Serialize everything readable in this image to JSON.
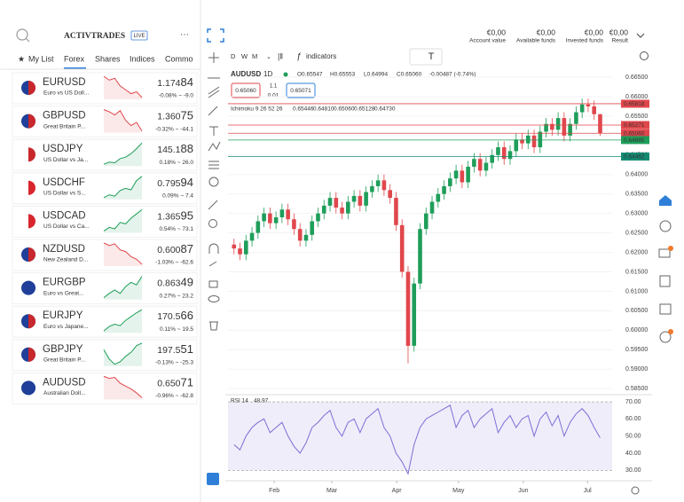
{
  "header": {
    "logo": "ACTIVTRADES",
    "badge": "LIVE",
    "account": [
      {
        "value": "€0,00",
        "label": "Account value"
      },
      {
        "value": "€0,00",
        "label": "Available funds"
      },
      {
        "value": "€0,00",
        "label": "Invested funds"
      },
      {
        "value": "€0,00",
        "label": "Result"
      }
    ]
  },
  "watchlist": {
    "tabs": [
      "My List",
      "Forex",
      "Shares",
      "Indices",
      "Commo"
    ],
    "active_tab": 1,
    "items": [
      {
        "symbol": "EURUSD",
        "desc": "Euro vs US Doll...",
        "price": "1.17484",
        "price_color": "#1e9e5a",
        "change": "-0.08% ~ -9.0",
        "change_color": "#e0474c",
        "spark": [
          9,
          8.6,
          8.8,
          8,
          7.6,
          7.2,
          7.4,
          6.8
        ],
        "spark_color": "#e0474c"
      },
      {
        "symbol": "GBPUSD",
        "desc": "Great Britain P...",
        "price": "1.36075",
        "price_color": "#1e9e5a",
        "change": "-0.32% ~ -44.1",
        "change_color": "#e0474c",
        "spark": [
          9,
          8.8,
          8.5,
          8.9,
          8,
          7.5,
          7.8,
          7
        ],
        "spark_color": "#e0474c"
      },
      {
        "symbol": "USDJPY",
        "desc": "US Dollar vs Ja...",
        "price": "145.188",
        "price_color": "#e0474c",
        "change": "0.18% ~ 26.0",
        "change_color": "#1e9e5a",
        "spark": [
          6,
          6.3,
          6.2,
          6.8,
          7,
          7.5,
          8.2,
          9
        ],
        "spark_color": "#1e9e5a"
      },
      {
        "symbol": "USDCHF",
        "desc": "US Dollar vs S...",
        "price": "0.79594",
        "price_color": "#e0474c",
        "change": "0.09% ~ 7.4",
        "change_color": "#1e9e5a",
        "spark": [
          6,
          6.4,
          6.2,
          7,
          7.3,
          7.1,
          8.4,
          9
        ],
        "spark_color": "#1e9e5a"
      },
      {
        "symbol": "USDCAD",
        "desc": "US Dollar vs Ca...",
        "price": "1.36595",
        "price_color": "#1e9e5a",
        "change": "0.54% ~ 73.1",
        "change_color": "#1e9e5a",
        "spark": [
          6,
          6.5,
          6.3,
          7.2,
          7,
          7.8,
          8.4,
          9
        ],
        "spark_color": "#1e9e5a"
      },
      {
        "symbol": "NZDUSD",
        "desc": "New Zealand D...",
        "price": "0.60087",
        "price_color": "#e0474c",
        "change": "-1.03% ~ -62.6",
        "change_color": "#e0474c",
        "spark": [
          9,
          8.7,
          8.9,
          8.2,
          8,
          7.4,
          7.1,
          6.5
        ],
        "spark_color": "#e0474c"
      },
      {
        "symbol": "EURGBP",
        "desc": "Euro vs Great...",
        "price": "0.86349",
        "price_color": "#e0474c",
        "change": "0.27% ~ 23.2",
        "change_color": "#1e9e5a",
        "spark": [
          6.5,
          7,
          7.4,
          7,
          7.8,
          8.3,
          8,
          9
        ],
        "spark_color": "#1e9e5a"
      },
      {
        "symbol": "EURJPY",
        "desc": "Euro vs Japane...",
        "price": "170.566",
        "price_color": "#e0474c",
        "change": "0.11% ~ 19.5",
        "change_color": "#1e9e5a",
        "spark": [
          6.2,
          6.8,
          7.1,
          6.9,
          7.6,
          8.1,
          8.6,
          9
        ],
        "spark_color": "#1e9e5a"
      },
      {
        "symbol": "GBPJPY",
        "desc": "Great Britain P...",
        "price": "197.551",
        "price_color": "#e0474c",
        "change": "-0.13% ~ -25.3",
        "change_color": "#e0474c",
        "spark": [
          8.5,
          7.8,
          7.4,
          7.6,
          8,
          8.3,
          8.8,
          9
        ],
        "spark_color": "#1e9e5a"
      },
      {
        "symbol": "AUDUSD",
        "desc": "Australian Doll...",
        "price": "0.65071",
        "price_color": "#1e9e5a",
        "change": "-0.96% ~ -62.8",
        "change_color": "#e0474c",
        "spark": [
          9,
          8.8,
          8.9,
          8.3,
          8,
          7.7,
          7.3,
          6.8
        ],
        "spark_color": "#e0474c"
      }
    ]
  },
  "chart": {
    "type": "candlestick",
    "timeframes": [
      "D",
      "W",
      "M"
    ],
    "indicators_button": "indicators",
    "symbol": "AUDUSD",
    "interval": "1D",
    "legend": [
      "O0.65547",
      "H0.65553",
      "L0.64994",
      "C0.65060",
      "-0.00487 (-0.74%)"
    ],
    "sell": "0.65060",
    "spread": "1.1",
    "lot": "0.01",
    "buy": "0.65071",
    "ichimoku": {
      "label": "Ichimoku 9 26 52 26",
      "values": [
        {
          "text": "0.65446",
          "color": "#2f7fd8"
        },
        {
          "text": "0.64810",
          "color": "#c8272c"
        },
        {
          "text": "0.65060",
          "color": "#3d9a3d"
        },
        {
          "text": "0.65128",
          "color": "#8fc98f"
        },
        {
          "text": "0.64730",
          "color": "#e89090"
        }
      ]
    },
    "up_color": "#1e9e5a",
    "down_color": "#e0474c",
    "xlim": [
      -1,
      63
    ],
    "xticks": [
      {
        "value": 6.7,
        "label": "Feb"
      },
      {
        "value": 16.3,
        "label": "Mar"
      },
      {
        "value": 27.1,
        "label": "Apr"
      },
      {
        "value": 37.4,
        "label": "May"
      },
      {
        "value": 48.2,
        "label": "Jun"
      },
      {
        "value": 58.9,
        "label": "Jul"
      }
    ],
    "ylim": [
      0.5839,
      0.6666
    ],
    "yticks": [
      {
        "value": 0.585,
        "label": "0.58500"
      },
      {
        "value": 0.59,
        "label": "0.59000"
      },
      {
        "value": 0.595,
        "label": "0.59500"
      },
      {
        "value": 0.6,
        "label": "0.60000"
      },
      {
        "value": 0.605,
        "label": "0.60500"
      },
      {
        "value": 0.61,
        "label": "0.61000"
      },
      {
        "value": 0.615,
        "label": "0.61500"
      },
      {
        "value": 0.62,
        "label": "0.62000"
      },
      {
        "value": 0.625,
        "label": "0.62500"
      },
      {
        "value": 0.63,
        "label": "0.63000"
      },
      {
        "value": 0.635,
        "label": "0.63500"
      },
      {
        "value": 0.64,
        "label": "0.64000"
      },
      {
        "value": 0.645,
        "label": "0.64500"
      },
      {
        "value": 0.65,
        "label": "0.65000"
      },
      {
        "value": 0.655,
        "label": "0.65500"
      },
      {
        "value": 0.66,
        "label": "0.66000"
      },
      {
        "value": 0.665,
        "label": "0.66500"
      }
    ],
    "price_lines": [
      {
        "value": 0.65818,
        "label": "0.65818",
        "color": "#e0474c"
      },
      {
        "value": 0.65271,
        "label": "0.65271",
        "color": "#e0474c"
      },
      {
        "value": 0.6506,
        "label": "0.65060",
        "color": "#e0474c"
      },
      {
        "value": 0.64885,
        "label": "0.64885",
        "color": "#1e9e5a"
      },
      {
        "value": 0.64462,
        "label": "0.64462",
        "color": "#138a72"
      }
    ],
    "open": [
      0.622,
      0.621,
      0.6195,
      0.623,
      0.625,
      0.628,
      0.63,
      0.6275,
      0.629,
      0.631,
      0.6285,
      0.626,
      0.623,
      0.6245,
      0.628,
      0.63,
      0.632,
      0.634,
      0.6315,
      0.63,
      0.633,
      0.6345,
      0.632,
      0.6355,
      0.637,
      0.6385,
      0.636,
      0.634,
      0.627,
      0.615,
      0.596,
      0.612,
      0.626,
      0.63,
      0.633,
      0.635,
      0.637,
      0.639,
      0.641,
      0.638,
      0.642,
      0.644,
      0.641,
      0.643,
      0.645,
      0.647,
      0.644,
      0.646,
      0.649,
      0.648,
      0.65,
      0.647,
      0.651,
      0.653,
      0.6515,
      0.6545,
      0.65,
      0.653,
      0.656,
      0.658,
      0.6575,
      0.6555
    ],
    "high": [
      0.6235,
      0.6225,
      0.6245,
      0.6265,
      0.6295,
      0.6315,
      0.6315,
      0.6305,
      0.6325,
      0.6325,
      0.63,
      0.6275,
      0.626,
      0.6295,
      0.6315,
      0.6335,
      0.6355,
      0.6355,
      0.633,
      0.6345,
      0.636,
      0.636,
      0.637,
      0.6385,
      0.64,
      0.64,
      0.6375,
      0.6355,
      0.6285,
      0.6165,
      0.6135,
      0.6275,
      0.6315,
      0.6345,
      0.6365,
      0.6385,
      0.6405,
      0.6425,
      0.6425,
      0.6435,
      0.6455,
      0.6455,
      0.6445,
      0.6465,
      0.6485,
      0.6485,
      0.6475,
      0.6505,
      0.6505,
      0.6515,
      0.6515,
      0.6525,
      0.6545,
      0.6545,
      0.656,
      0.656,
      0.6545,
      0.6575,
      0.6595,
      0.6595,
      0.659,
      0.6555
    ],
    "low": [
      0.6195,
      0.618,
      0.618,
      0.6215,
      0.6235,
      0.6265,
      0.626,
      0.626,
      0.6275,
      0.627,
      0.6245,
      0.6215,
      0.6215,
      0.623,
      0.6265,
      0.6285,
      0.6305,
      0.63,
      0.6285,
      0.6285,
      0.6315,
      0.6305,
      0.6305,
      0.634,
      0.6355,
      0.6345,
      0.6325,
      0.6255,
      0.6135,
      0.5915,
      0.5945,
      0.6105,
      0.6245,
      0.6285,
      0.6315,
      0.6335,
      0.6355,
      0.6375,
      0.6365,
      0.6365,
      0.6405,
      0.6395,
      0.6395,
      0.6415,
      0.6435,
      0.6425,
      0.6425,
      0.6445,
      0.6465,
      0.6465,
      0.6455,
      0.6455,
      0.6495,
      0.65,
      0.65,
      0.6485,
      0.6485,
      0.6515,
      0.6545,
      0.656,
      0.654,
      0.6499
    ],
    "close": [
      0.621,
      0.6195,
      0.623,
      0.625,
      0.628,
      0.63,
      0.6275,
      0.629,
      0.631,
      0.6285,
      0.626,
      0.623,
      0.6245,
      0.628,
      0.63,
      0.632,
      0.634,
      0.6315,
      0.63,
      0.633,
      0.6345,
      0.632,
      0.6355,
      0.637,
      0.6385,
      0.636,
      0.634,
      0.627,
      0.615,
      0.596,
      0.612,
      0.626,
      0.63,
      0.633,
      0.635,
      0.637,
      0.639,
      0.641,
      0.638,
      0.642,
      0.644,
      0.641,
      0.643,
      0.645,
      0.647,
      0.644,
      0.646,
      0.649,
      0.648,
      0.65,
      0.647,
      0.651,
      0.653,
      0.6515,
      0.6545,
      0.65,
      0.653,
      0.656,
      0.658,
      0.6575,
      0.6555,
      0.6506
    ],
    "rsi": {
      "label": "RSI 14",
      "last": "48.97",
      "color": "#7b6fd6",
      "ylim": [
        25,
        72.6
      ],
      "band": [
        30,
        70
      ],
      "yticks": [
        {
          "value": 30,
          "label": "30.00"
        },
        {
          "value": 40,
          "label": "40.00"
        },
        {
          "value": 50,
          "label": "50.00"
        },
        {
          "value": 60,
          "label": "60.00"
        },
        {
          "value": 70,
          "label": "70.00"
        }
      ],
      "values": [
        45,
        42,
        50,
        55,
        58,
        60,
        52,
        55,
        58,
        50,
        44,
        40,
        46,
        55,
        58,
        62,
        65,
        55,
        50,
        58,
        60,
        52,
        60,
        63,
        66,
        55,
        50,
        40,
        35,
        28,
        45,
        55,
        60,
        62,
        64,
        66,
        68,
        55,
        62,
        65,
        55,
        60,
        63,
        66,
        52,
        58,
        62,
        55,
        60,
        62,
        50,
        60,
        64,
        56,
        62,
        50,
        58,
        63,
        66,
        62,
        55,
        48.97
      ]
    }
  }
}
